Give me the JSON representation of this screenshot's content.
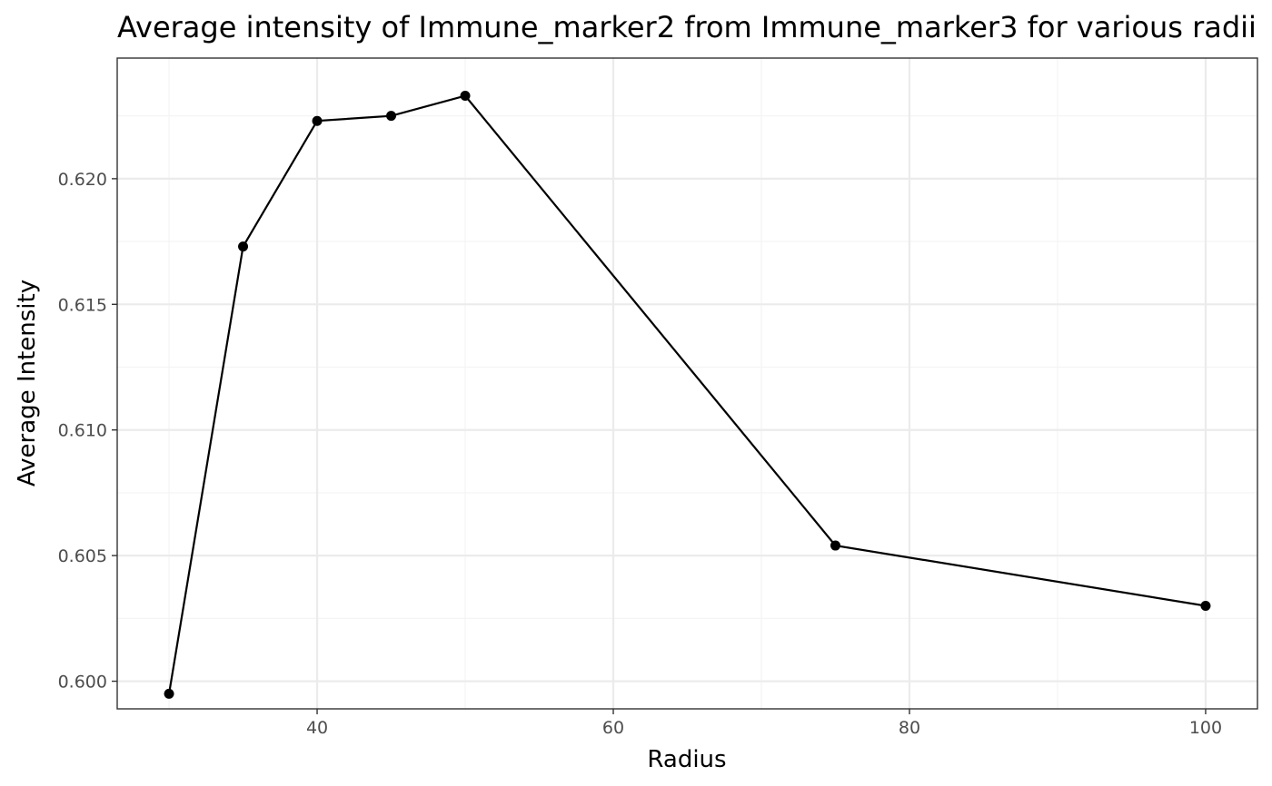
{
  "chart_data": {
    "type": "line",
    "title": "Average intensity of Immune_marker2 from Immune_marker3 for various radii",
    "xlabel": "Radius",
    "ylabel": "Average Intensity",
    "xlim": [
      26.5,
      103.5
    ],
    "ylim": [
      0.5989,
      0.6248
    ],
    "x_ticks": [
      40,
      60,
      80,
      100
    ],
    "x_tick_labels": [
      "40",
      "60",
      "80",
      "100"
    ],
    "y_ticks": [
      0.6,
      0.605,
      0.61,
      0.615,
      0.62
    ],
    "y_tick_labels": [
      "0.600",
      "0.605",
      "0.610",
      "0.615",
      "0.620"
    ],
    "grid": true,
    "series": [
      {
        "x": [
          30,
          35,
          40,
          45,
          50,
          75,
          100
        ],
        "y": [
          0.5995,
          0.6173,
          0.6223,
          0.6225,
          0.6233,
          0.6054,
          0.603
        ]
      }
    ],
    "colors": {
      "series": "#000000",
      "grid": "#ebebeb",
      "border": "#333333",
      "tick_label": "#4d4d4d"
    }
  }
}
